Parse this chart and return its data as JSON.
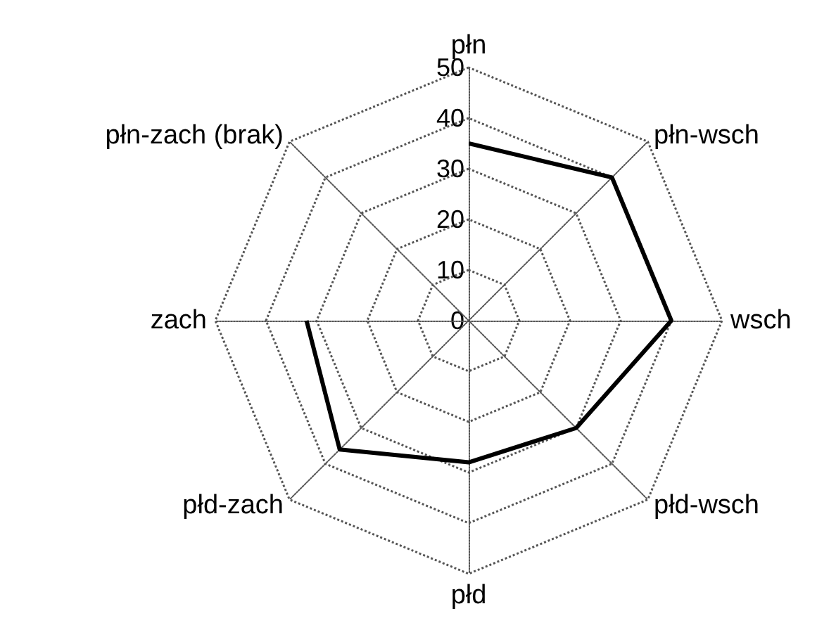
{
  "chart_data": {
    "type": "radar",
    "categories": [
      "płn",
      "płn-wsch",
      "wsch",
      "płd-wsch",
      "płd",
      "płd-zach",
      "zach",
      "płn-zach (brak)"
    ],
    "series": [
      {
        "color": "#000000",
        "values": [
          35,
          40,
          40,
          30,
          28,
          36,
          32,
          null
        ]
      }
    ],
    "ylim": [
      0,
      50
    ],
    "yticks": [
      0,
      10,
      20,
      30,
      40,
      50
    ],
    "grid": true,
    "marker": "none",
    "line_style": "solid"
  }
}
